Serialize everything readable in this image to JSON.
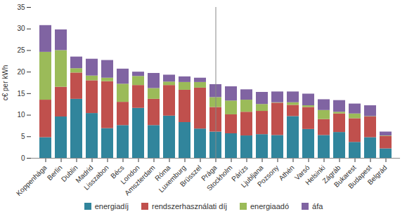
{
  "chart_data": {
    "type": "bar",
    "stacked": true,
    "y_label": "c€ per kWh",
    "categories": [
      "Koppenhága",
      "Berlin",
      "Dublin",
      "Madrid",
      "Lisszabon",
      "Bécs",
      "London",
      "Amszterdam",
      "Róma",
      "Luxemburg",
      "Brüsszel",
      "Prága",
      "Stockholm",
      "Párizs",
      "Ljubljana",
      "Pozsony",
      "Athén",
      "Varsó",
      "Helsinki",
      "Zágráb",
      "Bukarest",
      "Budapest",
      "Belgrád"
    ],
    "series": [
      {
        "name": "energiadíj",
        "color": "#31859c",
        "values": [
          4.8,
          9.6,
          13.7,
          10.4,
          6.9,
          7.6,
          11.6,
          7.6,
          9.8,
          8.3,
          6.8,
          6.1,
          5.7,
          5.2,
          5.5,
          5.3,
          9.7,
          6.7,
          5.3,
          6.0,
          3.7,
          4.8,
          2.2
        ]
      },
      {
        "name": "rendszerhasználati díj",
        "color": "#c0504d",
        "values": [
          8.7,
          6.9,
          6.1,
          7.6,
          10.9,
          5.4,
          5.3,
          6.1,
          7.1,
          7.5,
          9.5,
          5.7,
          4.4,
          5.5,
          5.4,
          7.5,
          2.6,
          5.1,
          3.7,
          4.3,
          5.5,
          4.8,
          2.9
        ]
      },
      {
        "name": "energiaadó",
        "color": "#9bbb59",
        "values": [
          11.1,
          8.5,
          1.0,
          1.1,
          0.8,
          4.2,
          2.1,
          2.5,
          0.8,
          1.8,
          1.3,
          2.3,
          3.2,
          2.8,
          1.6,
          0.1,
          0.6,
          0.4,
          2.1,
          0.4,
          1.1,
          0.1,
          0.1
        ]
      },
      {
        "name": "áfa",
        "color": "#8064a2",
        "values": [
          6.2,
          4.8,
          2.7,
          3.9,
          4.1,
          3.5,
          1.0,
          3.5,
          1.6,
          1.3,
          1.0,
          3.0,
          3.3,
          2.4,
          2.8,
          2.5,
          2.5,
          2.7,
          2.5,
          2.7,
          2.3,
          2.5,
          0.9
        ]
      }
    ],
    "ylim": [
      0,
      35
    ],
    "yticks": [
      0,
      5,
      10,
      15,
      20,
      25,
      30,
      35
    ],
    "grid": false,
    "legend": "bottom"
  }
}
